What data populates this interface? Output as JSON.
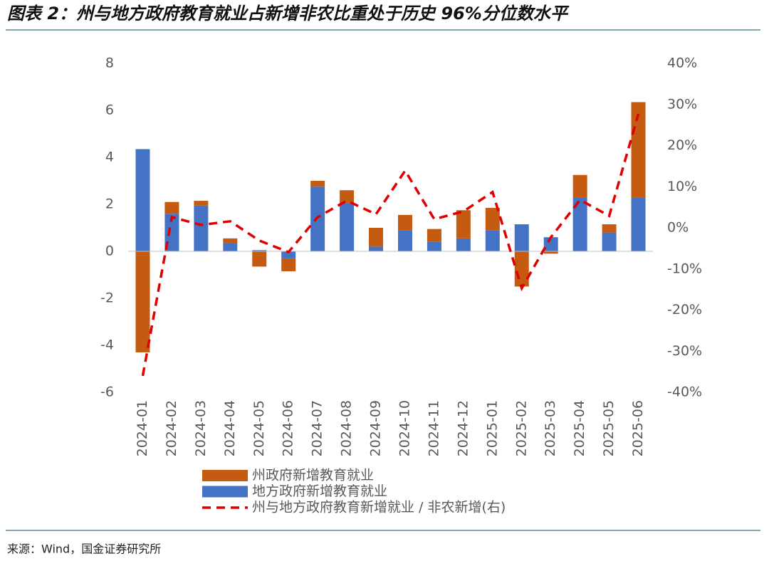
{
  "chart_data": {
    "type": "bar",
    "title": "图表 2：州与地方政府教育就业占新增非农比重处于历史 96%分位数水平",
    "source": "来源：Wind，国金证券研究所",
    "categories": [
      "2024-01",
      "2024-02",
      "2024-03",
      "2024-04",
      "2024-05",
      "2024-06",
      "2024-07",
      "2024-08",
      "2024-09",
      "2024-10",
      "2024-11",
      "2024-12",
      "2025-01",
      "2025-02",
      "2025-03",
      "2025-04",
      "2025-05",
      "2025-06"
    ],
    "series": [
      {
        "name": "州政府新增教育就业",
        "color": "#c55a11",
        "type": "bar",
        "values": [
          -4.3,
          0.5,
          0.2,
          0.2,
          -0.65,
          -0.55,
          0.25,
          0.55,
          0.8,
          0.65,
          0.55,
          1.2,
          0.95,
          -1.5,
          -0.1,
          0.95,
          0.35,
          4.05
        ]
      },
      {
        "name": "地方政府新增教育就业",
        "color": "#4472c4",
        "type": "bar",
        "values": [
          4.35,
          1.6,
          1.95,
          0.35,
          0.05,
          -0.3,
          2.75,
          2.05,
          0.2,
          0.9,
          0.4,
          0.55,
          0.9,
          1.15,
          0.6,
          2.3,
          0.8,
          2.3
        ]
      },
      {
        "name": "州与地方政府教育新增就业 / 非农新增(右)",
        "color": "#e00000",
        "type": "line",
        "axis": "y2",
        "values": [
          -36,
          2.6,
          0.7,
          1.6,
          -3.1,
          -5.9,
          2.6,
          6.6,
          3.3,
          13.9,
          2.1,
          4.0,
          8.7,
          -14.7,
          -2.3,
          6.8,
          2.9,
          27.7
        ]
      }
    ],
    "ylim": [
      -6,
      8
    ],
    "yticks": [
      -6,
      -4,
      -2,
      0,
      2,
      4,
      6,
      8
    ],
    "y2lim": [
      -40,
      40
    ],
    "y2ticks": [
      {
        "value": -40,
        "label": "-40%"
      },
      {
        "value": -30,
        "label": "-30%"
      },
      {
        "value": -20,
        "label": "-20%"
      },
      {
        "value": -10,
        "label": "-10%"
      },
      {
        "value": 0,
        "label": "0%"
      },
      {
        "value": 10,
        "label": "10%"
      },
      {
        "value": 20,
        "label": "20%"
      },
      {
        "value": 30,
        "label": "30%"
      },
      {
        "value": 40,
        "label": "40%"
      }
    ]
  }
}
